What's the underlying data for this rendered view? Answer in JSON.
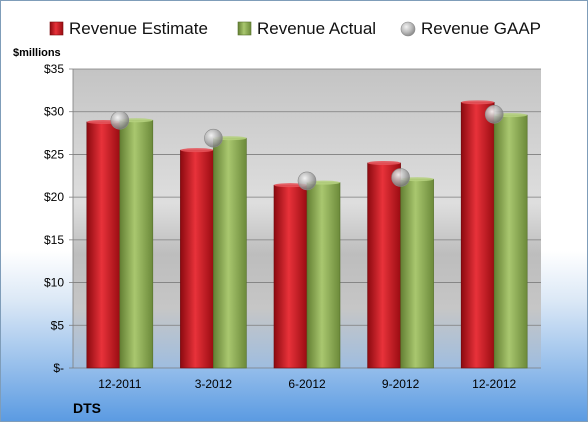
{
  "company": "DTS",
  "unit_label": "$millions",
  "legend": [
    {
      "label": "Revenue Estimate",
      "color": "#c0141c",
      "icon": "red-square-icon"
    },
    {
      "label": "Revenue Actual",
      "color": "#8aad4f",
      "icon": "green-square-icon"
    },
    {
      "label": "Revenue GAAP",
      "color": "#b8b8b8",
      "icon": "gray-sphere-icon"
    }
  ],
  "chart_data": {
    "type": "bar",
    "title": "",
    "xlabel": "",
    "ylabel": "$millions",
    "categories": [
      "12-2011",
      "3-2012",
      "6-2012",
      "9-2012",
      "12-2012"
    ],
    "series": [
      {
        "name": "Revenue Estimate",
        "values": [
          28.8,
          25.5,
          21.4,
          24.0,
          31.1
        ]
      },
      {
        "name": "Revenue Actual",
        "values": [
          29.0,
          26.9,
          21.7,
          22.1,
          29.6
        ]
      },
      {
        "name": "Revenue GAAP",
        "values": [
          29.0,
          26.9,
          21.9,
          22.3,
          29.7
        ]
      }
    ],
    "ylim": [
      0,
      35
    ],
    "yticks": [
      0,
      5,
      10,
      15,
      20,
      25,
      30,
      35
    ],
    "ytick_labels": [
      "$-",
      "$5",
      "$10",
      "$15",
      "$20",
      "$25",
      "$30",
      "$35"
    ],
    "grid": true,
    "legend_position": "top"
  }
}
